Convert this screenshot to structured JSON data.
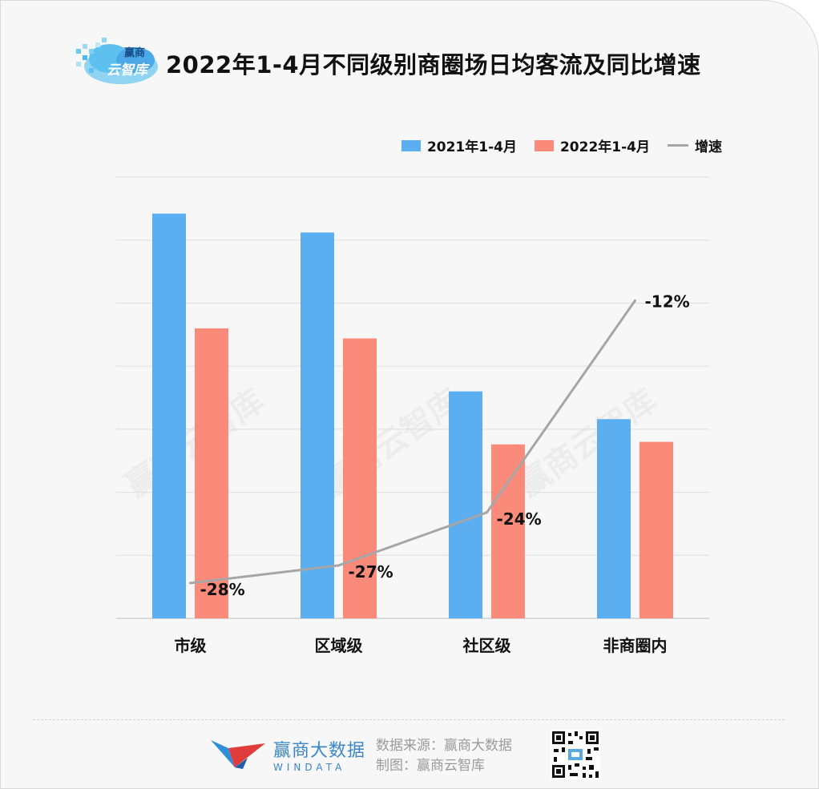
{
  "title": "2022年1-4月不同级别商圈场日均客流及同比增速",
  "logo": {
    "line1": "赢商",
    "line2": "云智库"
  },
  "watermark": "赢商云智库",
  "colors": {
    "series2021": "#5baff0",
    "series2022": "#fa8a7a",
    "growth": "#a6a6a6"
  },
  "legend": {
    "a": "2021年1-4月",
    "b": "2022年1-4月",
    "c": "增速"
  },
  "chart_data": {
    "type": "bar",
    "title": "2022年1-4月不同级别商圈场日均客流及同比增速",
    "categories": [
      "市级",
      "区域级",
      "社区级",
      "非商圈内"
    ],
    "series": [
      {
        "name": "2021年1-4月",
        "values": [
          32.1,
          30.6,
          18.0,
          15.8
        ]
      },
      {
        "name": "2022年1-4月",
        "values": [
          23.0,
          22.2,
          13.8,
          14.0
        ]
      }
    ],
    "line_series": {
      "name": "增速",
      "values": [
        -28,
        -27,
        -24,
        -12
      ],
      "labels": [
        "-28%",
        "-27%",
        "-24%",
        "-12%"
      ]
    },
    "ylim": [
      0,
      35
    ],
    "grid": true,
    "y_tick_labels_shown": false,
    "legend_position": "top-right"
  },
  "footer": {
    "brand_cn": "赢商大数据",
    "brand_en": "WINDATA",
    "source": "数据来源：赢商大数据",
    "made_by": "制图：赢商云智库"
  }
}
